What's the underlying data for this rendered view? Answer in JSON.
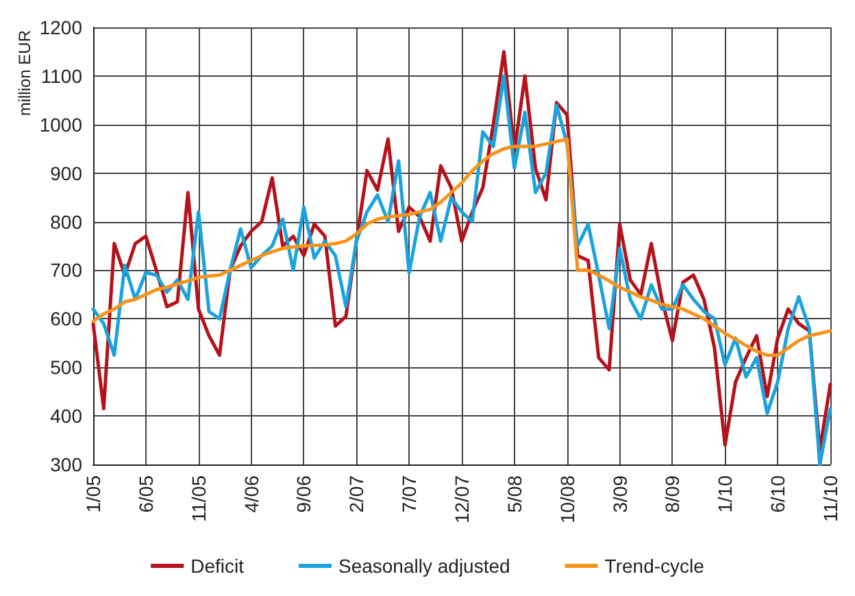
{
  "chart_data": {
    "type": "line",
    "ylabel": "million EUR",
    "categories": [
      "1/05",
      null,
      null,
      null,
      null,
      "6/05",
      null,
      null,
      null,
      null,
      "11/05",
      null,
      null,
      null,
      null,
      "4/06",
      null,
      null,
      null,
      null,
      "9/06",
      null,
      null,
      null,
      null,
      "2/07",
      null,
      null,
      null,
      null,
      "7/07",
      null,
      null,
      null,
      null,
      "12/07",
      null,
      null,
      null,
      null,
      "5/08",
      null,
      null,
      null,
      null,
      "10/08",
      null,
      null,
      null,
      null,
      "3/09",
      null,
      null,
      null,
      null,
      "8/09",
      null,
      null,
      null,
      null,
      "1/10",
      null,
      null,
      null,
      null,
      "6/10",
      null,
      null,
      null,
      null,
      "11/10"
    ],
    "series": [
      {
        "name": "Deficit",
        "color": "#b5121b",
        "values": [
          590,
          415,
          755,
          690,
          755,
          770,
          700,
          625,
          635,
          860,
          620,
          565,
          525,
          700,
          750,
          780,
          800,
          890,
          750,
          770,
          730,
          795,
          770,
          585,
          605,
          760,
          905,
          865,
          970,
          780,
          830,
          810,
          760,
          915,
          870,
          760,
          820,
          870,
          1000,
          1150,
          945,
          1100,
          910,
          845,
          1045,
          1020,
          730,
          720,
          520,
          495,
          795,
          680,
          650,
          755,
          640,
          555,
          675,
          690,
          640,
          540,
          340,
          470,
          520,
          565,
          440,
          560,
          620,
          590,
          575,
          330,
          465
        ]
      },
      {
        "name": "Seasonally adjusted",
        "color": "#1aa3dc",
        "values": [
          620,
          590,
          525,
          710,
          640,
          695,
          690,
          655,
          680,
          640,
          820,
          615,
          600,
          700,
          785,
          705,
          730,
          750,
          805,
          700,
          830,
          725,
          760,
          730,
          625,
          760,
          820,
          855,
          800,
          925,
          695,
          810,
          860,
          760,
          850,
          820,
          800,
          985,
          955,
          1100,
          910,
          1025,
          860,
          900,
          1040,
          960,
          750,
          795,
          690,
          580,
          745,
          640,
          600,
          670,
          620,
          620,
          670,
          640,
          615,
          600,
          505,
          560,
          480,
          520,
          405,
          470,
          580,
          645,
          580,
          300,
          415
        ]
      },
      {
        "name": "Trend-cycle",
        "color": "#f7941d",
        "values": [
          595,
          610,
          620,
          635,
          640,
          650,
          660,
          665,
          672,
          678,
          685,
          688,
          690,
          700,
          710,
          720,
          730,
          738,
          745,
          748,
          750,
          751,
          752,
          755,
          760,
          775,
          795,
          805,
          810,
          812,
          815,
          820,
          825,
          840,
          860,
          880,
          905,
          925,
          940,
          950,
          955,
          955,
          955,
          960,
          965,
          970,
          700,
          700,
          690,
          678,
          665,
          655,
          645,
          638,
          630,
          625,
          620,
          610,
          600,
          585,
          570,
          558,
          545,
          533,
          525,
          525,
          540,
          555,
          565,
          570,
          575
        ]
      }
    ],
    "ylim": [
      300,
      1200
    ],
    "yticks": [
      300,
      400,
      500,
      600,
      700,
      800,
      900,
      1000,
      1100,
      1200
    ],
    "grid": true,
    "legend": "bottom",
    "marker": "none",
    "line_style": "solid"
  }
}
